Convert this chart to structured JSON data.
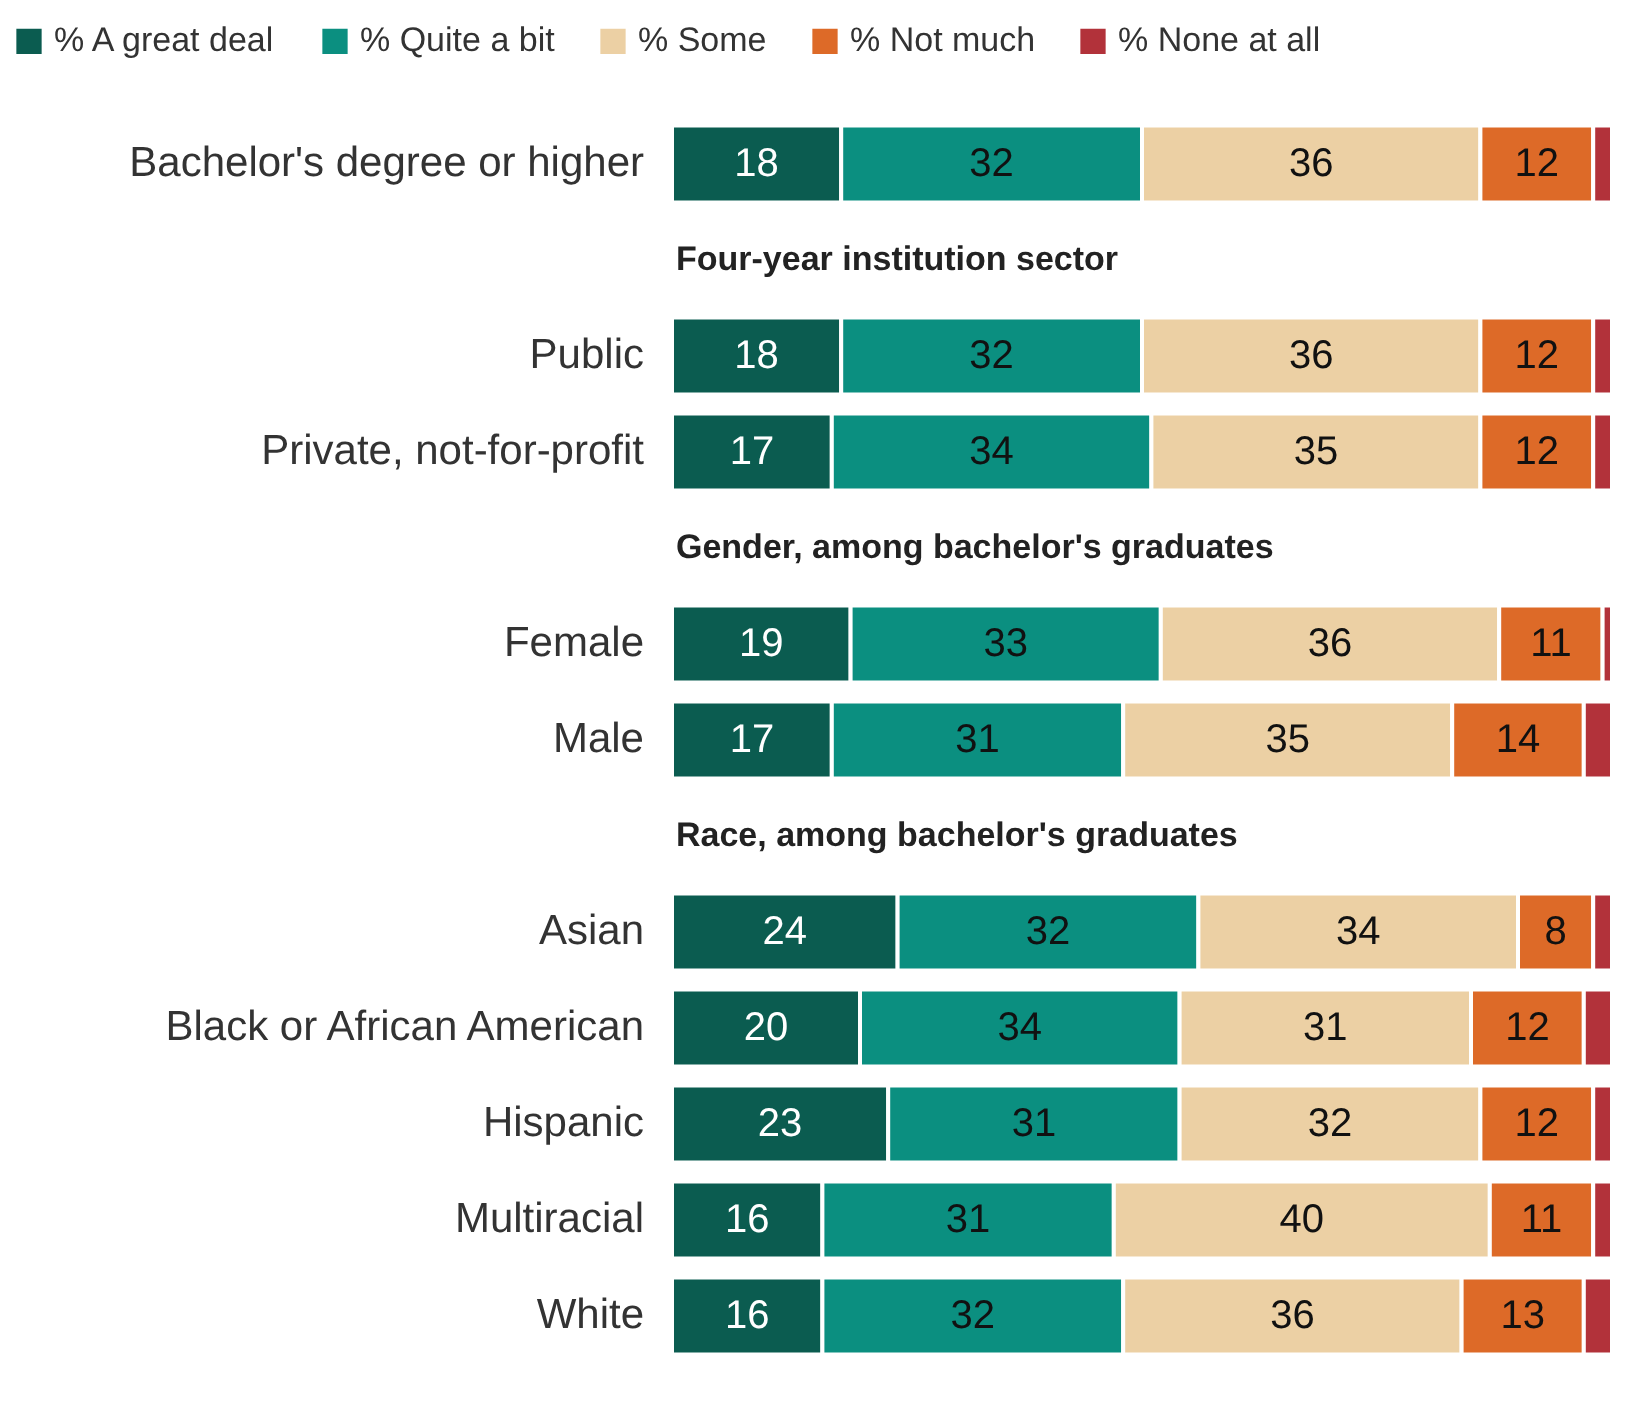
{
  "chart_data": {
    "type": "bar",
    "orientation": "horizontal",
    "stacked": true,
    "legend": "top left",
    "categories": [
      "Bachelor's degree or higher",
      null,
      "Public",
      "Private, not-for-profit",
      null,
      "Female",
      "Male",
      null,
      "Asian",
      "Black or African American",
      "Hispanic",
      "Multiracial",
      "White"
    ],
    "annotations": [
      "Four-year institution sector",
      "Gender, among bachelor's graduates",
      "Race, among bachelor's graduates"
    ],
    "series": [
      {
        "name": "% A great deal",
        "color": "#0b5c50",
        "values": [
          18,
          null,
          18,
          17,
          null,
          19,
          17,
          null,
          24,
          20,
          23,
          16,
          16
        ],
        "value_labels": [
          "18",
          null,
          "18",
          "17",
          null,
          "19",
          "17",
          null,
          "24",
          "20",
          "23",
          "16",
          "16"
        ]
      },
      {
        "name": "% Quite a bit",
        "color": "#0b8f80",
        "values": [
          32,
          null,
          32,
          34,
          null,
          33,
          31,
          null,
          32,
          34,
          31,
          31,
          32
        ],
        "value_labels": [
          "32",
          null,
          "32",
          "34",
          null,
          "33",
          "31",
          null,
          "32",
          "34",
          "31",
          "31",
          "32"
        ]
      },
      {
        "name": "% Some",
        "color": "#ecd0a4",
        "values": [
          36,
          null,
          36,
          35,
          null,
          36,
          35,
          null,
          34,
          31,
          32,
          40,
          36
        ],
        "value_labels": [
          "36",
          null,
          "36",
          "35",
          null,
          "36",
          "35",
          null,
          "34",
          "31",
          "32",
          "40",
          "36"
        ]
      },
      {
        "name": "% Not much",
        "color": "#dd6a28",
        "values": [
          12,
          null,
          12,
          12,
          null,
          11,
          14,
          null,
          8,
          12,
          12,
          11,
          13
        ],
        "value_labels": [
          "12",
          null,
          "12",
          "12",
          null,
          "11",
          "14",
          null,
          "8",
          "12",
          "12",
          "11",
          "13"
        ]
      },
      {
        "name": "% None at all",
        "color": "#b2323a",
        "values": [
          2,
          null,
          2,
          2,
          null,
          1,
          3,
          null,
          2,
          3,
          2,
          2,
          3
        ],
        "value_labels": [
          null,
          null,
          null,
          null,
          null,
          null,
          null,
          null,
          null,
          null,
          null,
          null,
          null
        ]
      }
    ]
  }
}
